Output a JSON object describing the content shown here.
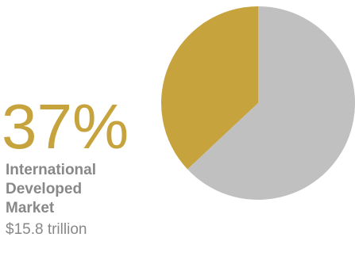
{
  "callout": {
    "percent_text": "37%",
    "label": "International Developed Market",
    "value_text": "$15.8 trillion"
  },
  "colors": {
    "highlight": "#c6a33d",
    "remainder": "#c0c0c0",
    "text_gray": "#888888"
  },
  "chart_data": {
    "type": "pie",
    "title": "",
    "slices": [
      {
        "label": "International Developed Market",
        "value": 37,
        "color": "#c6a33d"
      },
      {
        "label": "",
        "value": 63,
        "color": "#c0c0c0"
      }
    ]
  }
}
